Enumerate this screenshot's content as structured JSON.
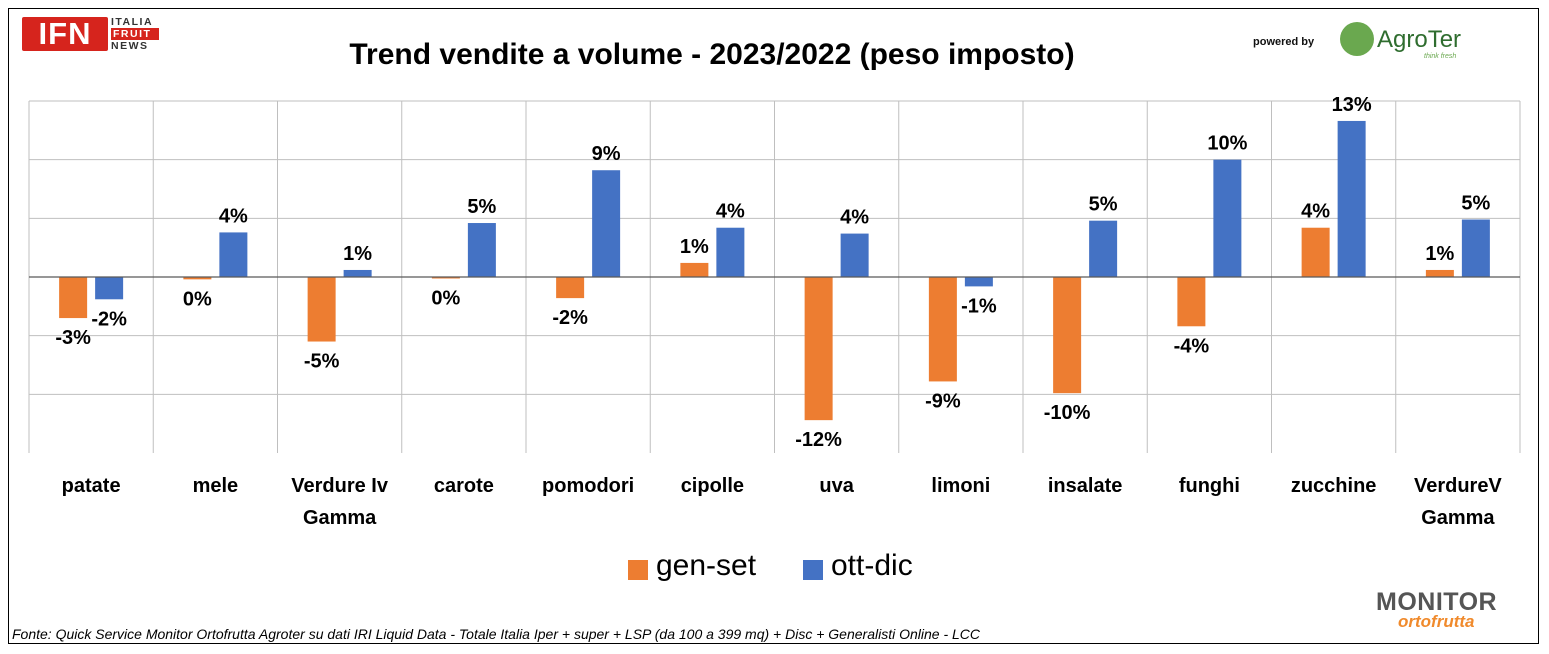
{
  "header": {
    "title": "Trend vendite a volume - 2023/2022 (peso imposto)",
    "ifn_logo": {
      "text": "IFN",
      "lines": [
        "ITALIA",
        "FRUIT",
        "NEWS"
      ]
    },
    "powered_by": "powered by",
    "agroter": {
      "name": "AgroTer",
      "tagline": "think fresh"
    }
  },
  "chart_data": {
    "type": "bar",
    "title": "Trend vendite a volume - 2023/2022 (peso imposto)",
    "categories": [
      "patate",
      "mele",
      "Verdure Iv Gamma",
      "carote",
      "pomodori",
      "cipolle",
      "uva",
      "limoni",
      "insalate",
      "funghi",
      "zucchine",
      "VerdureV Gamma"
    ],
    "category_lines": [
      [
        "patate"
      ],
      [
        "mele"
      ],
      [
        "Verdure Iv",
        "Gamma"
      ],
      [
        "carote"
      ],
      [
        "pomodori"
      ],
      [
        "cipolle"
      ],
      [
        "uva"
      ],
      [
        "limoni"
      ],
      [
        "insalate"
      ],
      [
        "funghi"
      ],
      [
        "zucchine"
      ],
      [
        "VerdureV",
        "Gamma"
      ]
    ],
    "series": [
      {
        "name": "gen-set",
        "color": "#ed7d31",
        "values": [
          -3.5,
          -0.2,
          -5.5,
          -0.1,
          -1.8,
          1.2,
          -12.2,
          -8.9,
          -9.9,
          -4.2,
          4.2,
          0.6
        ],
        "labels": [
          "-3%",
          "0%",
          "-5%",
          "0%",
          "-2%",
          "1%",
          "-12%",
          "-9%",
          "-10%",
          "-4%",
          "4%",
          "1%"
        ]
      },
      {
        "name": "ott-dic",
        "color": "#4472c4",
        "values": [
          -1.9,
          3.8,
          0.6,
          4.6,
          9.1,
          4.2,
          3.7,
          -0.8,
          4.8,
          10.0,
          13.3,
          4.9
        ],
        "labels": [
          "-2%",
          "4%",
          "1%",
          "5%",
          "9%",
          "4%",
          "4%",
          "-1%",
          "5%",
          "10%",
          "13%",
          "5%"
        ]
      }
    ],
    "ylim": [
      -15,
      15
    ],
    "gridlines": [
      -10,
      -5,
      0,
      5,
      10,
      15
    ],
    "grid": true,
    "legend_position": "bottom",
    "xlabel": "",
    "ylabel": ""
  },
  "footer": {
    "source": "Fonte: Quick Service Monitor Ortofrutta Agroter su dati IRI Liquid Data - Totale Italia Iper + super + LSP (da 100 a 399 mq) + Disc + Generalisti Online - LCC",
    "monitor_logo": {
      "top": "MONITOR",
      "bottom": "ortofrutta"
    }
  }
}
